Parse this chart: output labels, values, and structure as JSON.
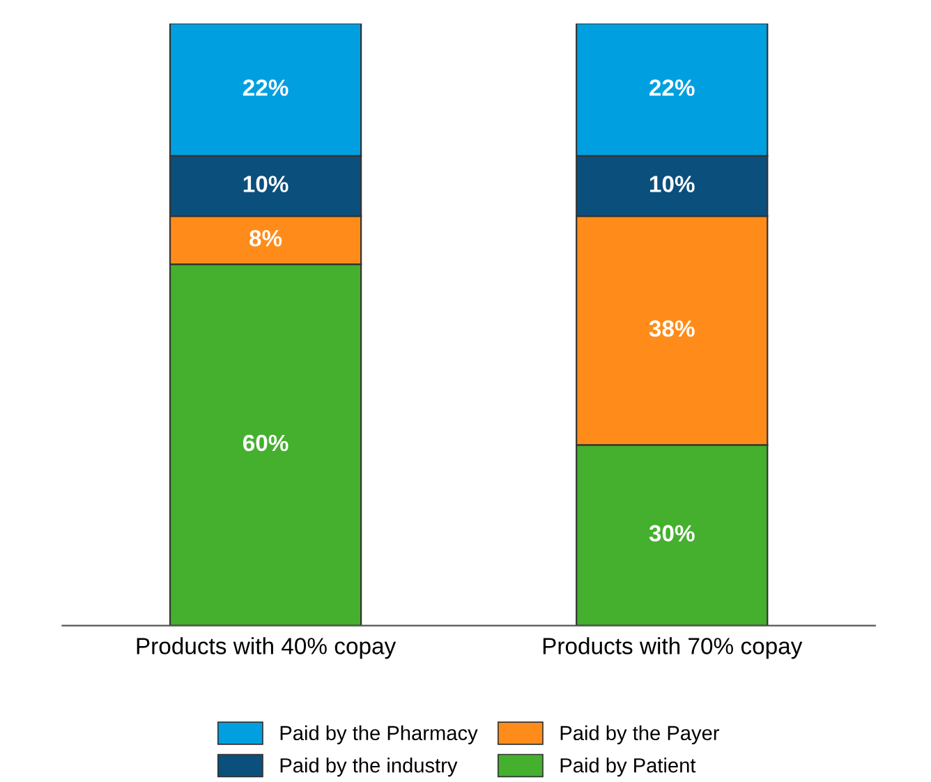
{
  "chart_data": {
    "type": "bar",
    "stacked": true,
    "categories": [
      "Products with 40% copay",
      "Products with 70% copay"
    ],
    "series": [
      {
        "name": "Paid by Patient",
        "color": "#44b02e",
        "values": [
          60,
          30
        ],
        "value_labels": [
          "60%",
          "30%"
        ]
      },
      {
        "name": "Paid by the Payer",
        "color": "#ff8c1a",
        "values": [
          8,
          38
        ],
        "value_labels": [
          "8%",
          "38%"
        ]
      },
      {
        "name": "Paid by the industry",
        "color": "#0b4f7c",
        "values": [
          10,
          10
        ],
        "value_labels": [
          "10%",
          "10%"
        ]
      },
      {
        "name": "Paid by the Pharmacy",
        "color": "#00a0e0",
        "values": [
          22,
          22
        ],
        "value_labels": [
          "22%",
          "22%"
        ]
      }
    ],
    "legend": "bottom",
    "grid": false
  }
}
